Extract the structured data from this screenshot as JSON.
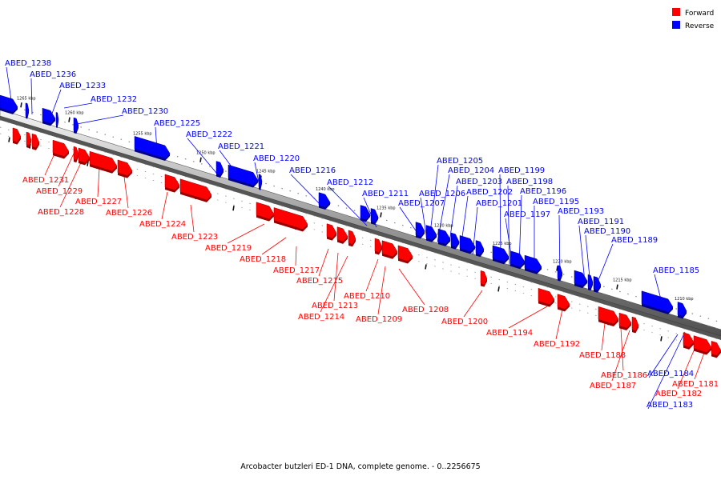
{
  "legend": {
    "forward": {
      "label": "Forward",
      "color": "#ff0000"
    },
    "reverse": {
      "label": "Reverse",
      "color": "#0000ff"
    }
  },
  "caption": "Arcobacter butzleri ED-1 DNA, complete genome. - 0..2256675",
  "ticks": [
    {
      "label": "1265 kbp"
    },
    {
      "label": "1260 kbp"
    },
    {
      "label": "1255 kbp"
    },
    {
      "label": "1250 kbp"
    },
    {
      "label": "1245 kbp"
    },
    {
      "label": "1240 kbp"
    },
    {
      "label": "1235 kbp"
    },
    {
      "label": "1230 kbp"
    },
    {
      "label": "1225 kbp"
    },
    {
      "label": "1220 kbp"
    },
    {
      "label": "1215 kbp"
    },
    {
      "label": "1210 kbp"
    }
  ],
  "reverse_genes": [
    {
      "name": "ABED_1238"
    },
    {
      "name": "ABED_1236"
    },
    {
      "name": "ABED_1233"
    },
    {
      "name": "ABED_1232"
    },
    {
      "name": "ABED_1230"
    },
    {
      "name": "ABED_1225"
    },
    {
      "name": "ABED_1222"
    },
    {
      "name": "ABED_1221"
    },
    {
      "name": "ABED_1220"
    },
    {
      "name": "ABED_1216"
    },
    {
      "name": "ABED_1212"
    },
    {
      "name": "ABED_1211"
    },
    {
      "name": "ABED_1205"
    },
    {
      "name": "ABED_1204"
    },
    {
      "name": "ABED_1203"
    },
    {
      "name": "ABED_1206"
    },
    {
      "name": "ABED_1202"
    },
    {
      "name": "ABED_1207"
    },
    {
      "name": "ABED_1201"
    },
    {
      "name": "ABED_1199"
    },
    {
      "name": "ABED_1198"
    },
    {
      "name": "ABED_1196"
    },
    {
      "name": "ABED_1195"
    },
    {
      "name": "ABED_1197"
    },
    {
      "name": "ABED_1193"
    },
    {
      "name": "ABED_1191"
    },
    {
      "name": "ABED_1190"
    },
    {
      "name": "ABED_1189"
    },
    {
      "name": "ABED_1185"
    },
    {
      "name": "ABED_1184"
    },
    {
      "name": "ABED_1183"
    }
  ],
  "forward_genes": [
    {
      "name": "ABED_1231"
    },
    {
      "name": "ABED_1229"
    },
    {
      "name": "ABED_1228"
    },
    {
      "name": "ABED_1227"
    },
    {
      "name": "ABED_1226"
    },
    {
      "name": "ABED_1224"
    },
    {
      "name": "ABED_1223"
    },
    {
      "name": "ABED_1219"
    },
    {
      "name": "ABED_1218"
    },
    {
      "name": "ABED_1217"
    },
    {
      "name": "ABED_1215"
    },
    {
      "name": "ABED_1213"
    },
    {
      "name": "ABED_1214"
    },
    {
      "name": "ABED_1210"
    },
    {
      "name": "ABED_1209"
    },
    {
      "name": "ABED_1208"
    },
    {
      "name": "ABED_1200"
    },
    {
      "name": "ABED_1194"
    },
    {
      "name": "ABED_1192"
    },
    {
      "name": "ABED_1188"
    },
    {
      "name": "ABED_1186"
    },
    {
      "name": "ABED_1187"
    },
    {
      "name": "ABED_1181"
    },
    {
      "name": "ABED_1182"
    }
  ]
}
